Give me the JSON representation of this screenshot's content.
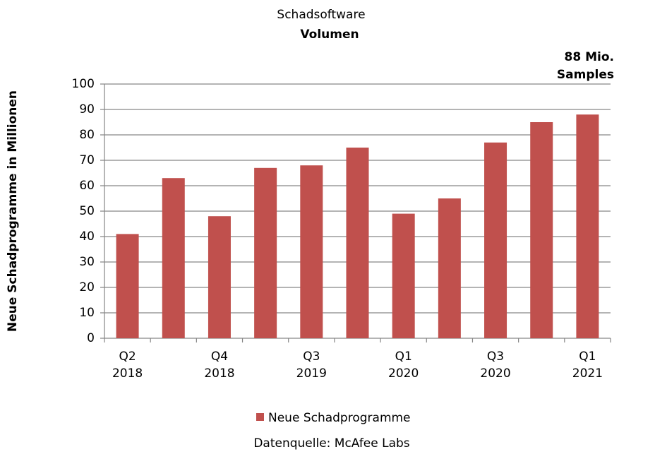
{
  "chart_data": {
    "type": "bar",
    "title": "Schadsoftware",
    "subtitle": "Volumen",
    "annotation": [
      "88 Mio.",
      "Samples"
    ],
    "y_label": "Neue Schadprogramme in Millionen",
    "source": "Datenquelle: McAfee Labs",
    "categories": [
      "Q2 2018",
      null,
      "Q4 2018",
      null,
      "Q3 2019",
      null,
      "Q1 2020",
      null,
      "Q3 2020",
      null,
      "Q1 2021"
    ],
    "series": [
      {
        "name": "Neue Schadprogramme",
        "color": "#c0504d",
        "values": [
          41,
          63,
          48,
          67,
          68,
          75,
          49,
          55,
          77,
          85,
          88
        ]
      }
    ],
    "ylim": [
      0,
      100
    ],
    "yticks": [
      0,
      10,
      20,
      30,
      40,
      50,
      60,
      70,
      80,
      90,
      100
    ],
    "grid": true
  }
}
